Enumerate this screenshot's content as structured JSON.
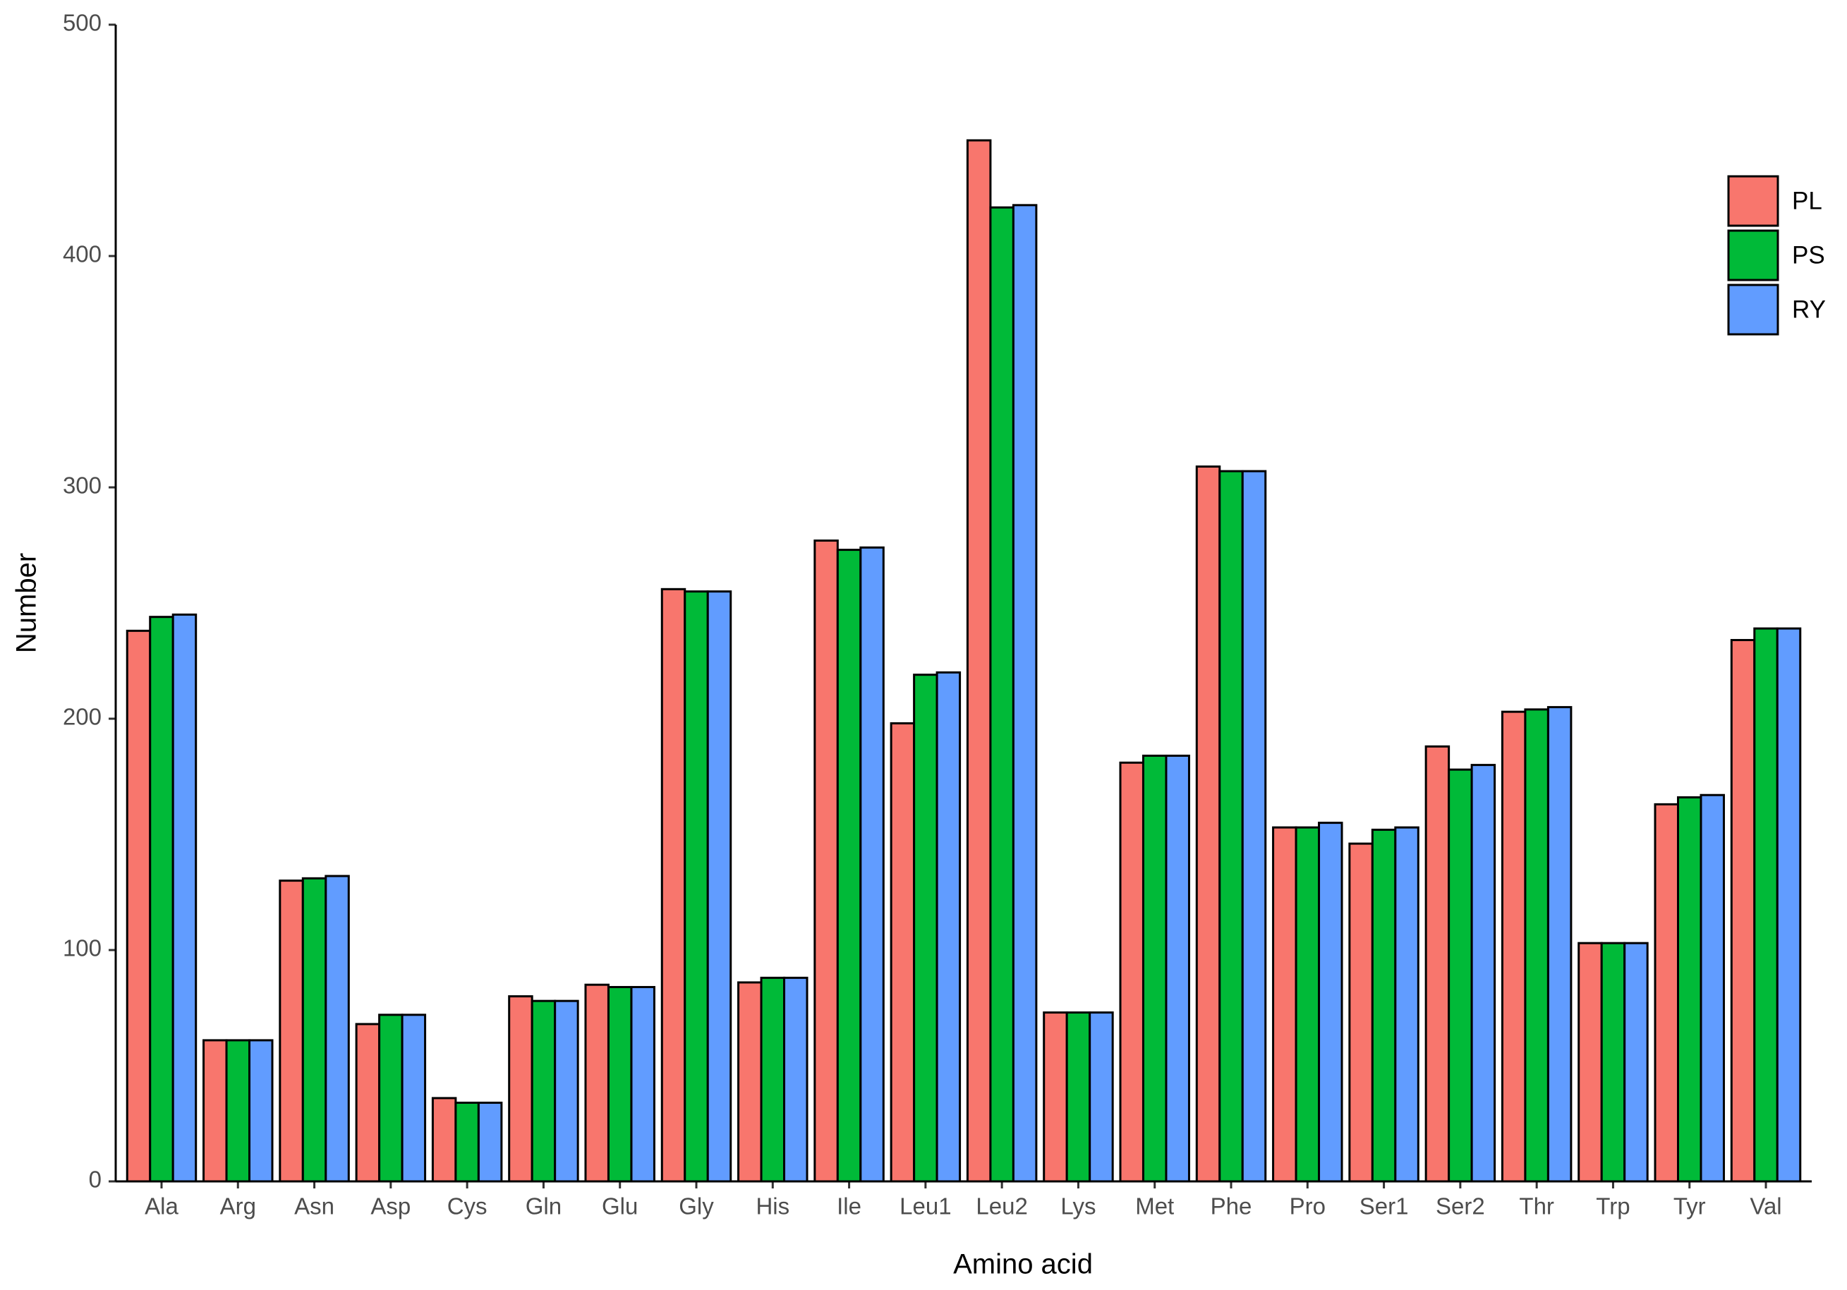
{
  "chart_data": {
    "type": "bar",
    "x_label": "Amino acid",
    "y_label": "Number",
    "categories": [
      "Ala",
      "Arg",
      "Asn",
      "Asp",
      "Cys",
      "Gln",
      "Glu",
      "Gly",
      "His",
      "Ile",
      "Leu1",
      "Leu2",
      "Lys",
      "Met",
      "Phe",
      "Pro",
      "Ser1",
      "Ser2",
      "Thr",
      "Trp",
      "Tyr",
      "Val"
    ],
    "series": [
      {
        "name": "PL",
        "color": "#f8766d",
        "values": [
          238,
          61,
          130,
          68,
          36,
          80,
          85,
          256,
          86,
          277,
          198,
          450,
          73,
          181,
          309,
          153,
          146,
          188,
          203,
          103,
          163,
          234
        ]
      },
      {
        "name": "PS",
        "color": "#00ba38",
        "values": [
          244,
          61,
          131,
          72,
          34,
          78,
          84,
          255,
          88,
          273,
          219,
          421,
          73,
          184,
          307,
          153,
          152,
          178,
          204,
          103,
          166,
          239
        ]
      },
      {
        "name": "RY",
        "color": "#619cff",
        "values": [
          245,
          61,
          132,
          72,
          34,
          78,
          84,
          255,
          88,
          274,
          220,
          422,
          73,
          184,
          307,
          155,
          153,
          180,
          205,
          103,
          167,
          239
        ]
      }
    ],
    "ylim": [
      0,
      500
    ],
    "yticks": [
      0,
      100,
      200,
      300,
      400,
      500
    ],
    "legend": "top-right"
  }
}
